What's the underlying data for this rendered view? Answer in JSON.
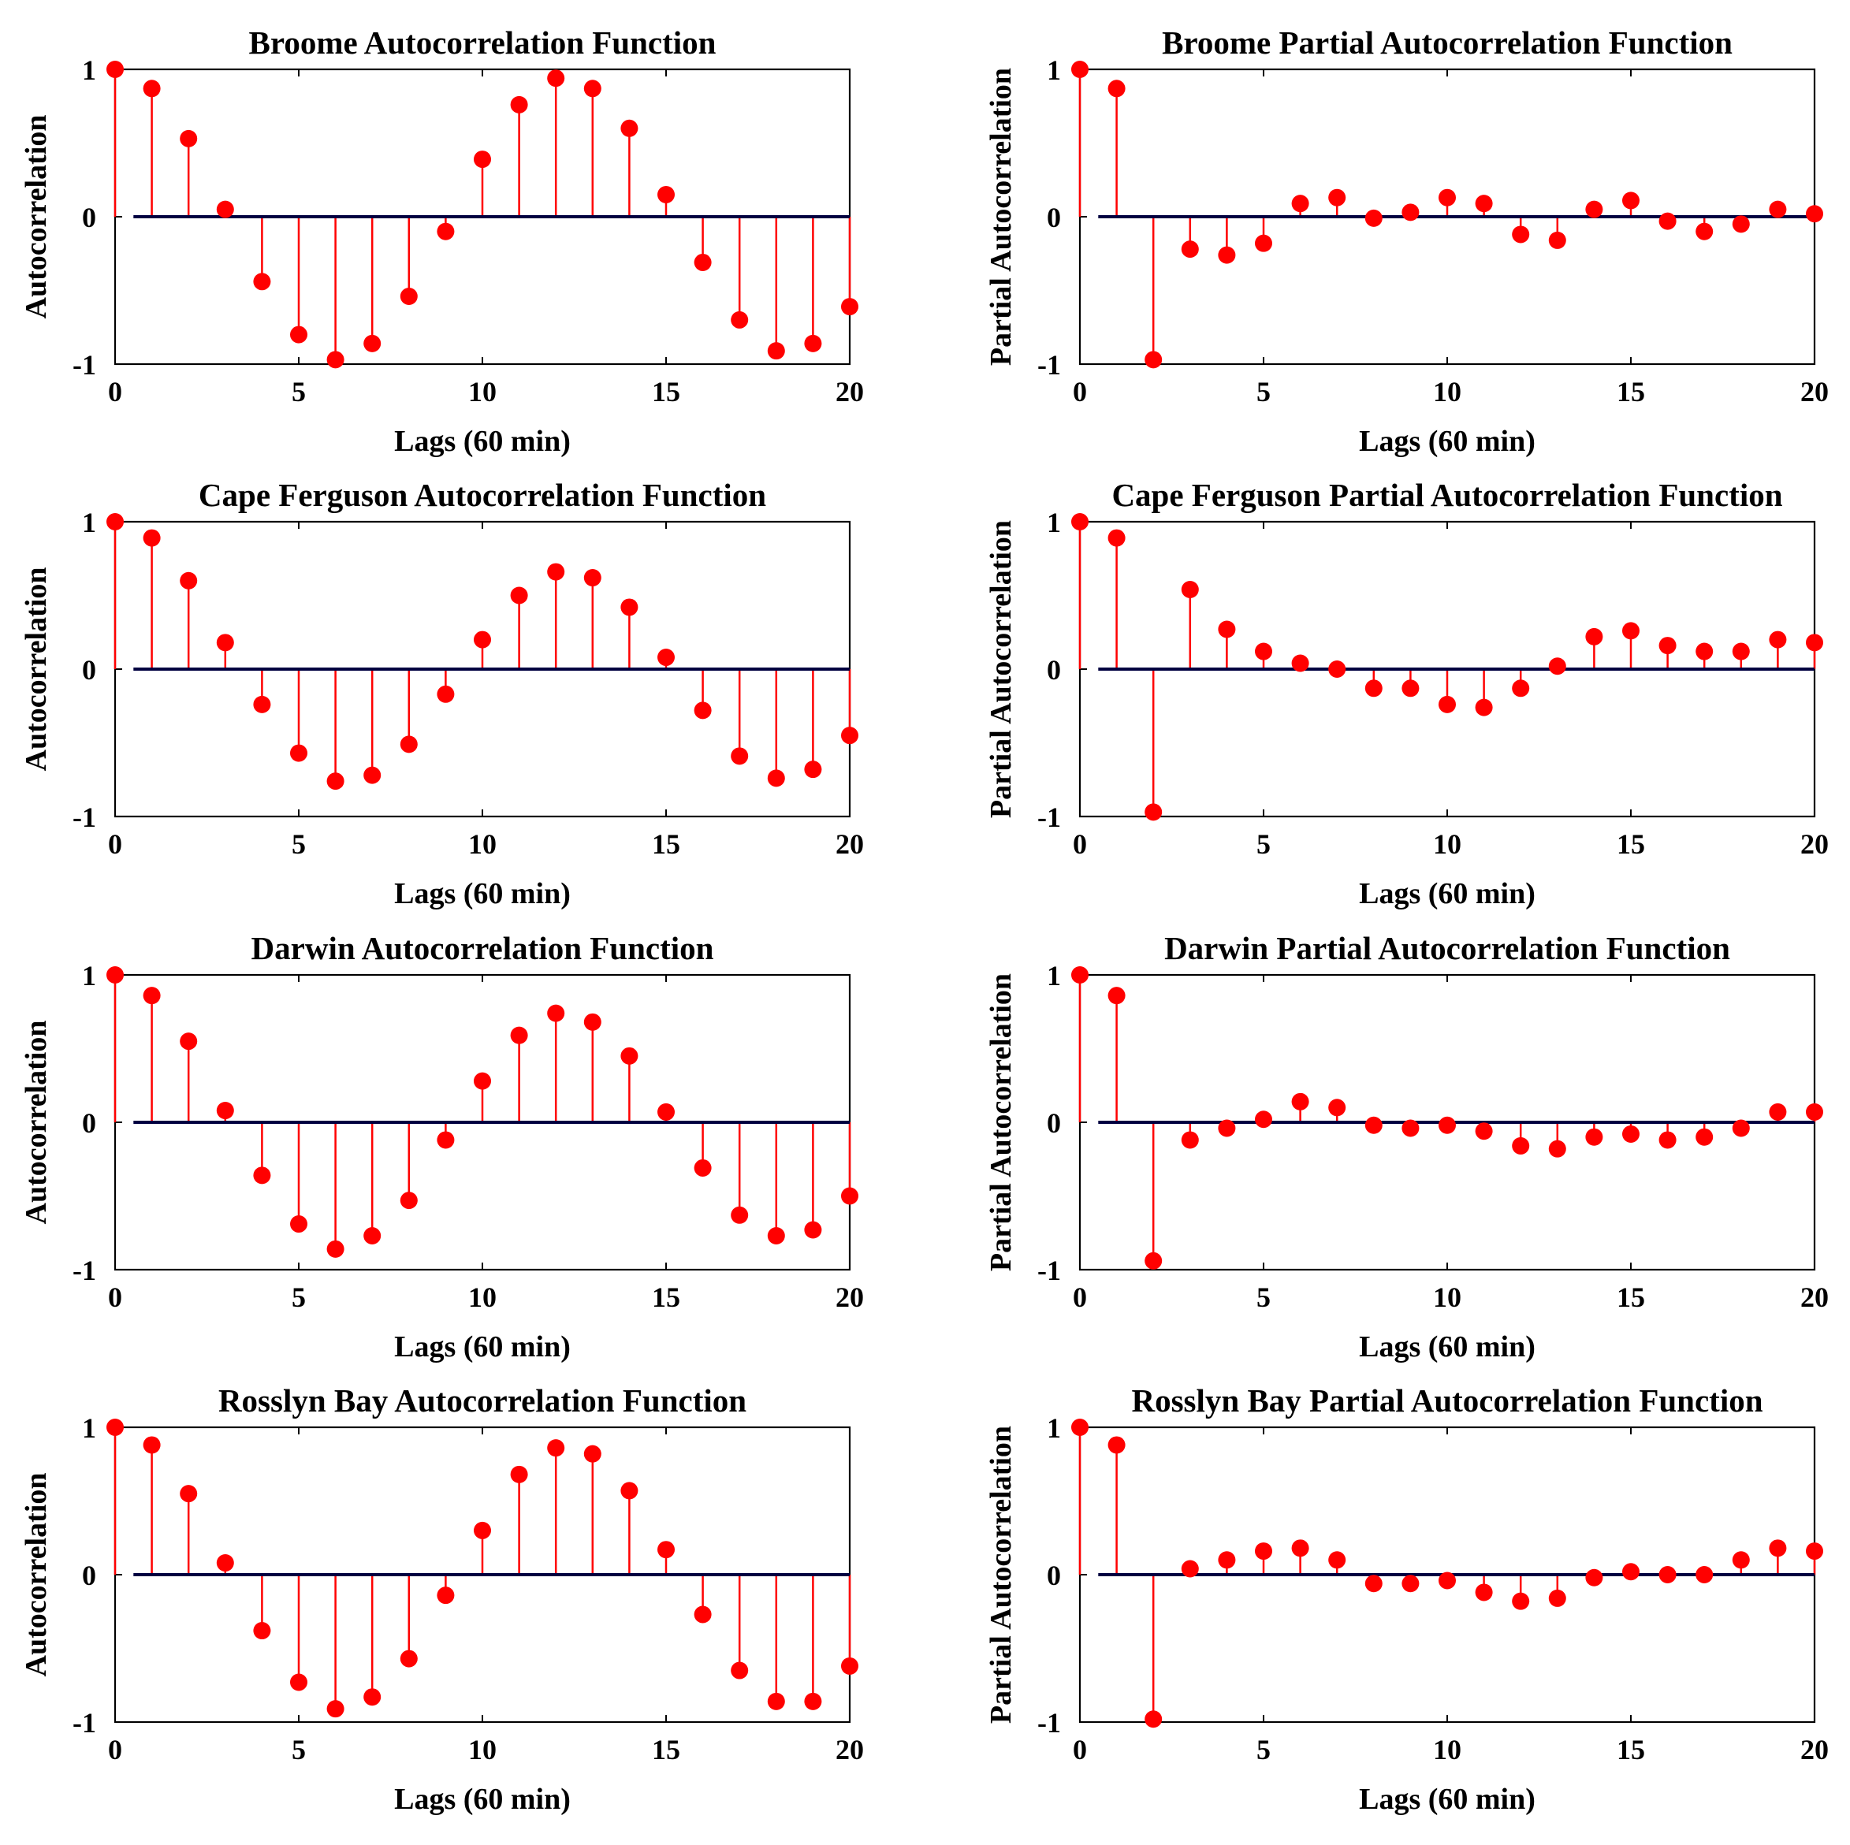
{
  "figure": {
    "style": {
      "stem_color": "#ff0000",
      "marker_color": "#ff0000",
      "baseline_color": "#000040",
      "frame_color": "#000000"
    },
    "x_ticks": [
      "0",
      "5",
      "10",
      "15",
      "20"
    ],
    "y_ticks": [
      "-1",
      "0",
      "1"
    ]
  },
  "chart_data": [
    {
      "type": "stem",
      "title": "Broome Autocorrelation Function",
      "xlabel": "Lags (60 min)",
      "ylabel": "Autocorrelation",
      "xlim": [
        0,
        20
      ],
      "ylim": [
        -1,
        1
      ],
      "lags": [
        0,
        1,
        2,
        3,
        4,
        5,
        6,
        7,
        8,
        9,
        10,
        11,
        12,
        13,
        14,
        15,
        16,
        17,
        18,
        19,
        20
      ],
      "values": [
        1.0,
        0.87,
        0.53,
        0.05,
        -0.44,
        -0.8,
        -0.97,
        -0.86,
        -0.54,
        -0.1,
        0.39,
        0.76,
        0.94,
        0.87,
        0.6,
        0.15,
        -0.31,
        -0.7,
        -0.91,
        -0.86,
        -0.61
      ]
    },
    {
      "type": "stem",
      "title": "Broome Partial Autocorrelation Function",
      "xlabel": "Lags (60 min)",
      "ylabel": "Partial Autocorrelation",
      "xlim": [
        0,
        20
      ],
      "ylim": [
        -1,
        1
      ],
      "lags": [
        0,
        1,
        2,
        3,
        4,
        5,
        6,
        7,
        8,
        9,
        10,
        11,
        12,
        13,
        14,
        15,
        16,
        17,
        18,
        19,
        20
      ],
      "values": [
        1.0,
        0.87,
        -0.97,
        -0.22,
        -0.26,
        -0.18,
        0.09,
        0.13,
        -0.01,
        0.03,
        0.13,
        0.09,
        -0.12,
        -0.16,
        0.05,
        0.11,
        -0.03,
        -0.1,
        -0.05,
        0.05,
        0.02
      ]
    },
    {
      "type": "stem",
      "title": "Cape Ferguson Autocorrelation Function",
      "xlabel": "Lags (60 min)",
      "ylabel": "Autocorrelation",
      "xlim": [
        0,
        20
      ],
      "ylim": [
        -1,
        1
      ],
      "lags": [
        0,
        1,
        2,
        3,
        4,
        5,
        6,
        7,
        8,
        9,
        10,
        11,
        12,
        13,
        14,
        15,
        16,
        17,
        18,
        19,
        20
      ],
      "values": [
        1.0,
        0.89,
        0.6,
        0.18,
        -0.24,
        -0.57,
        -0.76,
        -0.72,
        -0.51,
        -0.17,
        0.2,
        0.5,
        0.66,
        0.62,
        0.42,
        0.08,
        -0.28,
        -0.59,
        -0.74,
        -0.68,
        -0.45
      ]
    },
    {
      "type": "stem",
      "title": "Cape Ferguson Partial Autocorrelation Function",
      "xlabel": "Lags (60 min)",
      "ylabel": "Partial Autocorrelation",
      "xlim": [
        0,
        20
      ],
      "ylim": [
        -1,
        1
      ],
      "lags": [
        0,
        1,
        2,
        3,
        4,
        5,
        6,
        7,
        8,
        9,
        10,
        11,
        12,
        13,
        14,
        15,
        16,
        17,
        18,
        19,
        20
      ],
      "values": [
        1.0,
        0.89,
        -0.97,
        0.54,
        0.27,
        0.12,
        0.04,
        0.0,
        -0.13,
        -0.13,
        -0.24,
        -0.26,
        -0.13,
        0.02,
        0.22,
        0.26,
        0.16,
        0.12,
        0.12,
        0.2,
        0.18
      ]
    },
    {
      "type": "stem",
      "title": "Darwin Autocorrelation Function",
      "xlabel": "Lags (60 min)",
      "ylabel": "Autocorrelation",
      "xlim": [
        0,
        20
      ],
      "ylim": [
        -1,
        1
      ],
      "lags": [
        0,
        1,
        2,
        3,
        4,
        5,
        6,
        7,
        8,
        9,
        10,
        11,
        12,
        13,
        14,
        15,
        16,
        17,
        18,
        19,
        20
      ],
      "values": [
        1.0,
        0.86,
        0.55,
        0.08,
        -0.36,
        -0.69,
        -0.86,
        -0.77,
        -0.53,
        -0.12,
        0.28,
        0.59,
        0.74,
        0.68,
        0.45,
        0.07,
        -0.31,
        -0.63,
        -0.77,
        -0.73,
        -0.5
      ]
    },
    {
      "type": "stem",
      "title": "Darwin Partial Autocorrelation Function",
      "xlabel": "Lags (60 min)",
      "ylabel": "Partial Autocorrelation",
      "xlim": [
        0,
        20
      ],
      "ylim": [
        -1,
        1
      ],
      "lags": [
        0,
        1,
        2,
        3,
        4,
        5,
        6,
        7,
        8,
        9,
        10,
        11,
        12,
        13,
        14,
        15,
        16,
        17,
        18,
        19,
        20
      ],
      "values": [
        1.0,
        0.86,
        -0.94,
        -0.12,
        -0.04,
        0.02,
        0.14,
        0.1,
        -0.02,
        -0.04,
        -0.02,
        -0.06,
        -0.16,
        -0.18,
        -0.1,
        -0.08,
        -0.12,
        -0.1,
        -0.04,
        0.07,
        0.07
      ]
    },
    {
      "type": "stem",
      "title": "Rosslyn Bay Autocorrelation Function",
      "xlabel": "Lags (60 min)",
      "ylabel": "Autocorrelation",
      "xlim": [
        0,
        20
      ],
      "ylim": [
        -1,
        1
      ],
      "lags": [
        0,
        1,
        2,
        3,
        4,
        5,
        6,
        7,
        8,
        9,
        10,
        11,
        12,
        13,
        14,
        15,
        16,
        17,
        18,
        19,
        20
      ],
      "values": [
        1.0,
        0.88,
        0.55,
        0.08,
        -0.38,
        -0.73,
        -0.91,
        -0.83,
        -0.57,
        -0.14,
        0.3,
        0.68,
        0.86,
        0.82,
        0.57,
        0.17,
        -0.27,
        -0.65,
        -0.86,
        -0.86,
        -0.62
      ]
    },
    {
      "type": "stem",
      "title": "Rosslyn Bay Partial Autocorrelation Function",
      "xlabel": "Lags (60 min)",
      "ylabel": "Partial Autocorrelation",
      "xlim": [
        0,
        20
      ],
      "ylim": [
        -1,
        1
      ],
      "lags": [
        0,
        1,
        2,
        3,
        4,
        5,
        6,
        7,
        8,
        9,
        10,
        11,
        12,
        13,
        14,
        15,
        16,
        17,
        18,
        19,
        20
      ],
      "values": [
        1.0,
        0.88,
        -0.98,
        0.04,
        0.1,
        0.16,
        0.18,
        0.1,
        -0.06,
        -0.06,
        -0.04,
        -0.12,
        -0.18,
        -0.16,
        -0.02,
        0.02,
        0.0,
        0.0,
        0.1,
        0.18,
        0.16
      ]
    }
  ]
}
